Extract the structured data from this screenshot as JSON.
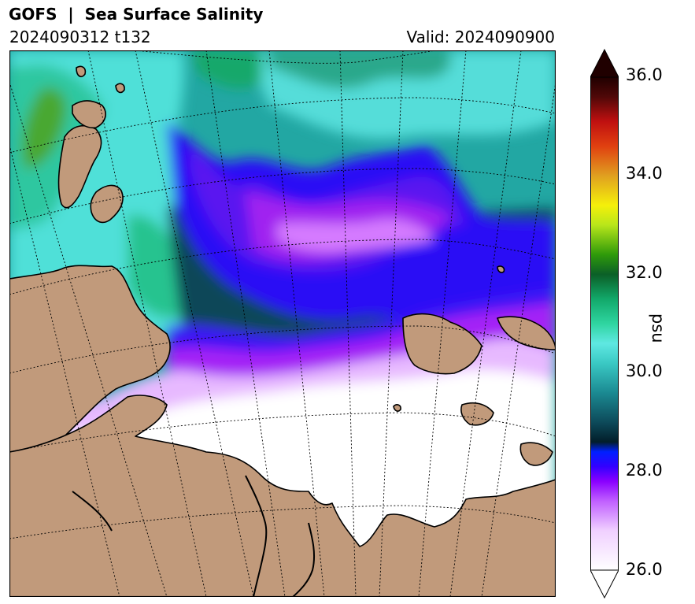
{
  "header": {
    "title": "GOFS  |  Sea Surface Salinity",
    "run": "2024090312 t132",
    "valid": "Valid: 2024090900"
  },
  "colorbar": {
    "label": "psu",
    "ticks": [
      "26.0",
      "28.0",
      "30.0",
      "32.0",
      "34.0",
      "36.0"
    ],
    "min": 26.0,
    "max": 36.0,
    "extend": "both"
  },
  "map": {
    "variable": "Sea Surface Salinity",
    "units": "psu",
    "colors": {
      "land": "#c19a7b",
      "fresh": "#ffffff",
      "violet": "#a000ff",
      "blue": "#2200ff",
      "dark_teal": "#083a48",
      "teal": "#1e9b9b",
      "cyan": "#59e6e0",
      "green": "#17a86a"
    }
  }
}
